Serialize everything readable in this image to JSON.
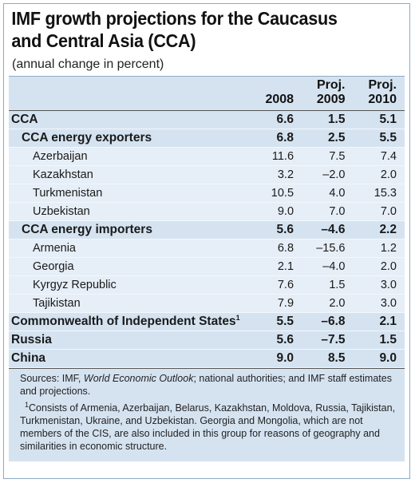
{
  "title_line1": "IMF growth projections for the Caucasus",
  "title_line2": "and Central Asia (CCA)",
  "subtitle": "(annual change in percent)",
  "headers": {
    "col1": "2008",
    "col2_a": "Proj.",
    "col2_b": "2009",
    "col3_a": "Proj.",
    "col3_b": "2010"
  },
  "rows": [
    {
      "label": "CCA",
      "v2008": "6.6",
      "v2009": "1.5",
      "v2010": "5.1"
    },
    {
      "label": "CCA energy exporters",
      "v2008": "6.8",
      "v2009": "2.5",
      "v2010": "5.5"
    },
    {
      "label": "Azerbaijan",
      "v2008": "11.6",
      "v2009": "7.5",
      "v2010": "7.4"
    },
    {
      "label": "Kazakhstan",
      "v2008": "3.2",
      "v2009": "–2.0",
      "v2010": "2.0"
    },
    {
      "label": "Turkmenistan",
      "v2008": "10.5",
      "v2009": "4.0",
      "v2010": "15.3"
    },
    {
      "label": "Uzbekistan",
      "v2008": "9.0",
      "v2009": "7.0",
      "v2010": "7.0"
    },
    {
      "label": "CCA energy importers",
      "v2008": "5.6",
      "v2009": "–4.6",
      "v2010": "2.2"
    },
    {
      "label": "Armenia",
      "v2008": "6.8",
      "v2009": "–15.6",
      "v2010": "1.2"
    },
    {
      "label": "Georgia",
      "v2008": "2.1",
      "v2009": "–4.0",
      "v2010": "2.0"
    },
    {
      "label": "Kyrgyz Republic",
      "v2008": "7.6",
      "v2009": "1.5",
      "v2010": "3.0"
    },
    {
      "label": "Tajikistan",
      "v2008": "7.9",
      "v2009": "2.0",
      "v2010": "3.0"
    },
    {
      "label": "Commonwealth of Independent States",
      "footnote_mark": "1",
      "v2008": "5.5",
      "v2009": "–6.8",
      "v2010": "2.1"
    },
    {
      "label": "Russia",
      "v2008": "5.6",
      "v2009": "–7.5",
      "v2010": "1.5"
    },
    {
      "label": "China",
      "v2008": "9.0",
      "v2009": "8.5",
      "v2010": "9.0"
    }
  ],
  "sources": {
    "prefix": "Sources: IMF, ",
    "publication": "World Economic Outlook",
    "suffix": "; national authorities; and IMF staff estimates and projections."
  },
  "footnote": {
    "mark": "1",
    "text": "Consists of Armenia, Azerbaijan, Belarus, Kazakhstan, Moldova, Russia, Tajikistan, Turkmenistan, Ukraine, and Uzbekistan. Georgia and Mongolia, which are not members of the CIS, are also included in this group for reasons of geography and similarities in economic structure."
  }
}
